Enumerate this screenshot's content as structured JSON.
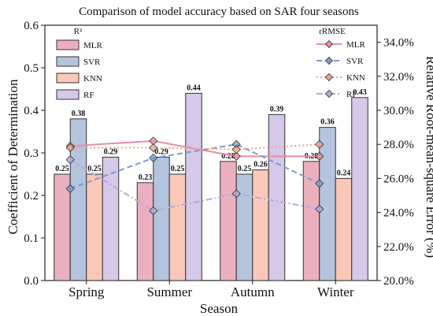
{
  "chart_data": {
    "type": "bar",
    "title": "Comparison of model accuracy based on SAR four seasons",
    "xlabel": "Season",
    "ylabel": "Coefficient of Determination",
    "y2label": "Relative Root-mean-square Error (%)",
    "categories": [
      "Spring",
      "Summer",
      "Autumn",
      "Winter"
    ],
    "ylim": [
      0,
      0.6
    ],
    "yticks": [
      "0.0",
      "0.1",
      "0.2",
      "0.3",
      "0.4",
      "0.5",
      "0.6"
    ],
    "y2lim": [
      20,
      35
    ],
    "y2ticks": [
      "20.0%",
      "22.0%",
      "24.0%",
      "26.0%",
      "28.0%",
      "30.0%",
      "32.0%",
      "34.0%"
    ],
    "legend_bars_title": "R²",
    "legend_lines_title": "rRMSE",
    "bar_series": [
      {
        "name": "MLR",
        "color": "#eab0bf",
        "values": [
          0.25,
          0.23,
          0.28,
          0.28
        ],
        "labels": [
          "0.25",
          "0.23",
          "0.28",
          "0.28"
        ]
      },
      {
        "name": "SVR",
        "color": "#b4c4dc",
        "values": [
          0.38,
          0.29,
          0.25,
          0.36
        ],
        "labels": [
          "0.38",
          "0.29",
          "0.25",
          "0.36"
        ]
      },
      {
        "name": "KNN",
        "color": "#f9c8b8",
        "values": [
          0.25,
          0.25,
          0.26,
          0.24
        ],
        "labels": [
          "0.25",
          "0.25",
          "0.26",
          "0.24"
        ]
      },
      {
        "name": "RF",
        "color": "#d6c8e8",
        "values": [
          0.29,
          0.44,
          0.39,
          0.43
        ],
        "labels": [
          "0.29",
          "0.44",
          "0.39",
          "0.43"
        ]
      }
    ],
    "line_series": [
      {
        "name": "MLR",
        "color": "#e88ea0",
        "line_style": "solid",
        "values": [
          27.9,
          28.2,
          27.3,
          27.3
        ]
      },
      {
        "name": "SVR",
        "color": "#7b9cd0",
        "line_style": "dashed",
        "values": [
          25.4,
          27.2,
          28.0,
          25.7
        ]
      },
      {
        "name": "KNN",
        "color": "#f3a58a",
        "line_style": "dotted",
        "values": [
          27.8,
          27.8,
          27.7,
          28.0
        ]
      },
      {
        "name": "RF",
        "color": "#b7a8db",
        "line_style": "dashdot",
        "values": [
          27.1,
          24.1,
          25.1,
          24.2
        ]
      }
    ],
    "grid": false,
    "legend_position": "top-left (bars), top-right (lines)"
  }
}
